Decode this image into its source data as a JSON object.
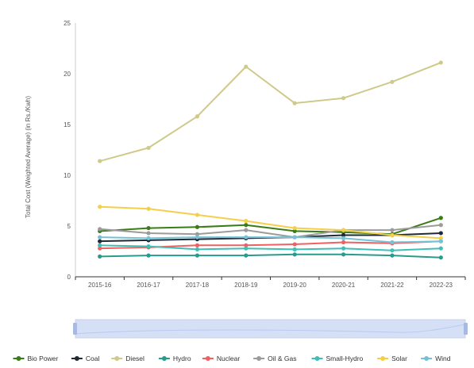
{
  "chart_data": {
    "type": "line",
    "ylabel": "Total Cost (Weighted Average)  (in Rs./Kwh)",
    "xlabel": "",
    "ylim": [
      0,
      25
    ],
    "yticks": [
      0,
      5,
      10,
      15,
      20,
      25
    ],
    "categories": [
      "2015-16",
      "2016-17",
      "2017-18",
      "2018-19",
      "2019-20",
      "2020-21",
      "2021-22",
      "2022-23"
    ],
    "legend_position": "bottom",
    "grid": false,
    "series": [
      {
        "name": "Bio Power",
        "color": "#3a7d17",
        "values": [
          4.5,
          4.8,
          4.9,
          5.1,
          4.5,
          4.4,
          4.2,
          5.8
        ]
      },
      {
        "name": "Coal",
        "color": "#1f2a36",
        "values": [
          3.5,
          3.6,
          3.7,
          3.8,
          3.9,
          4.1,
          4.1,
          4.3
        ]
      },
      {
        "name": "Diesel",
        "color": "#cfc98a",
        "values": [
          11.4,
          12.7,
          15.8,
          20.7,
          17.1,
          17.6,
          19.2,
          21.1
        ]
      },
      {
        "name": "Hydro",
        "color": "#2a9a8e",
        "values": [
          2.0,
          2.1,
          2.1,
          2.1,
          2.2,
          2.2,
          2.1,
          1.9
        ]
      },
      {
        "name": "Nuclear",
        "color": "#ef6060",
        "values": [
          2.8,
          2.9,
          3.1,
          3.1,
          3.2,
          3.4,
          3.3,
          3.5
        ]
      },
      {
        "name": "Oil & Gas",
        "color": "#9b9b9b",
        "values": [
          4.7,
          4.3,
          4.2,
          4.6,
          3.9,
          4.6,
          4.6,
          5.1
        ]
      },
      {
        "name": "Small-Hydro",
        "color": "#3fbfb6",
        "values": [
          3.1,
          3.0,
          2.7,
          2.8,
          2.7,
          2.8,
          2.6,
          2.8
        ]
      },
      {
        "name": "Solar",
        "color": "#f4cf4a",
        "values": [
          6.9,
          6.7,
          6.1,
          5.5,
          4.8,
          4.6,
          4.1,
          3.8
        ]
      },
      {
        "name": "Wind",
        "color": "#74c2d6",
        "values": [
          3.9,
          3.8,
          3.9,
          3.9,
          3.9,
          3.8,
          3.4,
          3.5
        ]
      }
    ]
  }
}
